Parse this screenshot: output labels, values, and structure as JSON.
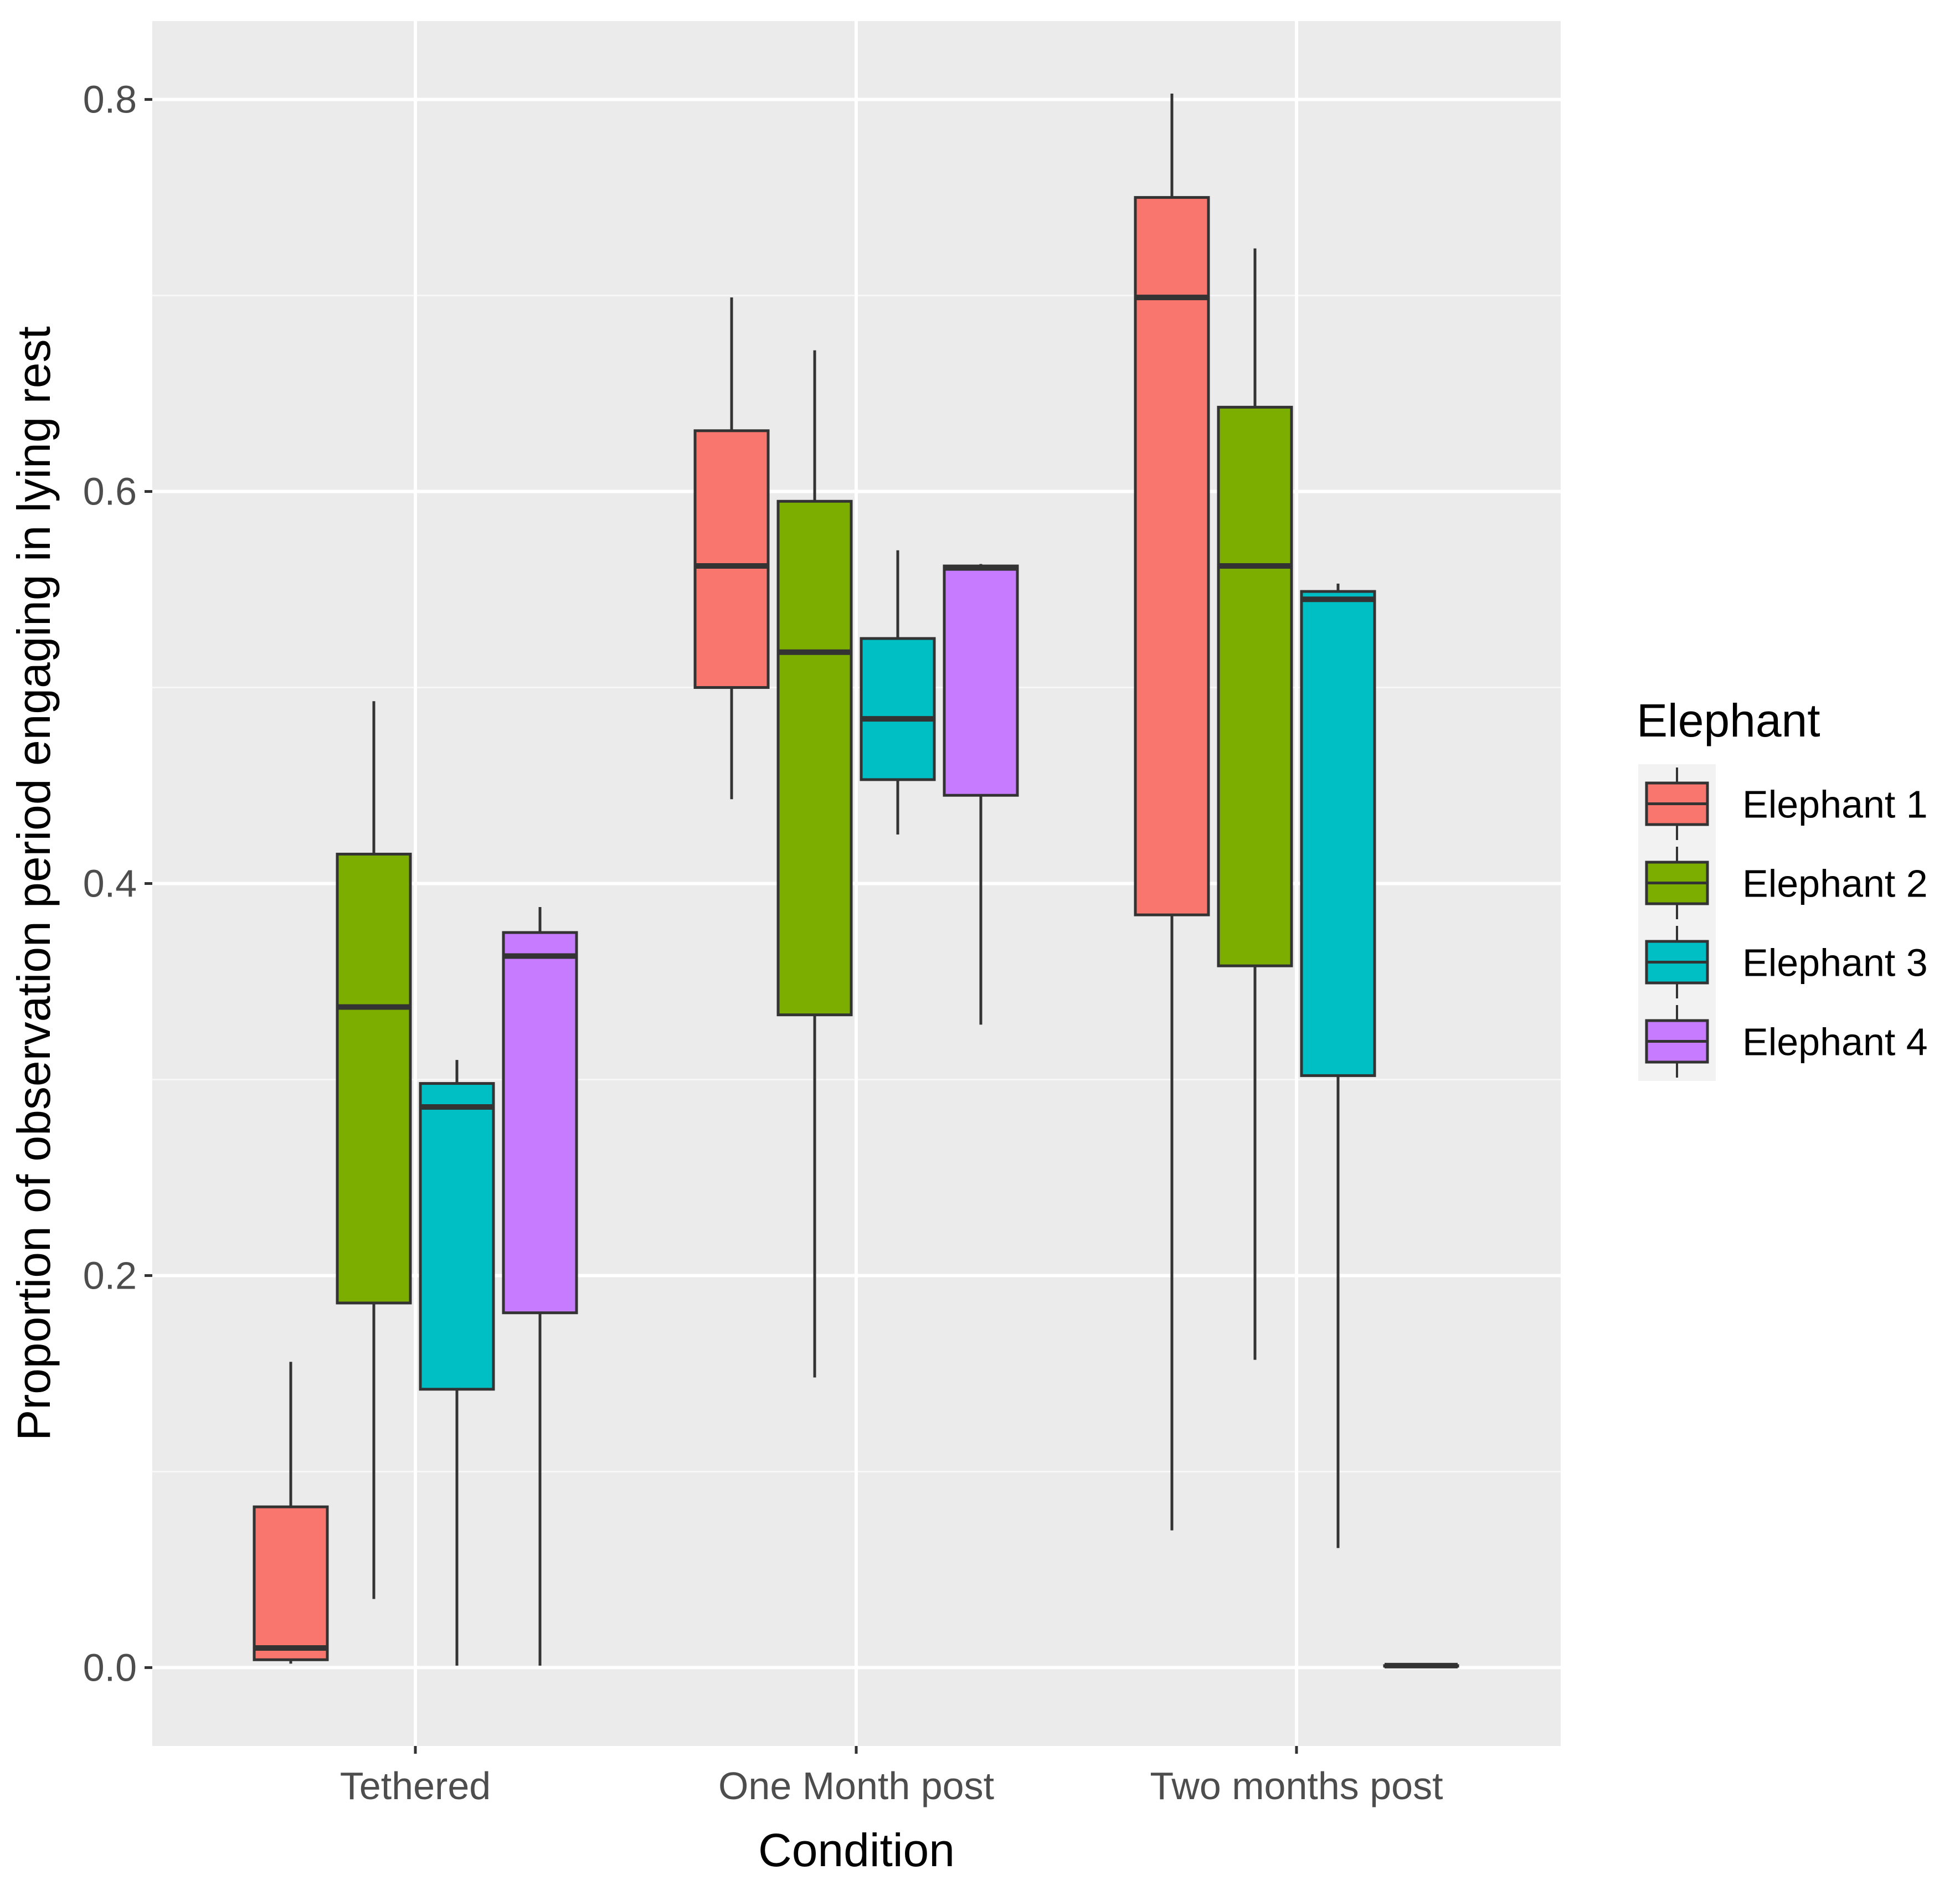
{
  "chart_data": {
    "type": "boxplot",
    "xlabel": "Condition",
    "ylabel": "Proportion of observation period engaging in lying rest",
    "ylim": [
      -0.04,
      0.84
    ],
    "yticks": [
      0.0,
      0.2,
      0.4,
      0.6,
      0.8
    ],
    "ytick_labels": [
      "0.0",
      "0.2",
      "0.4",
      "0.6",
      "0.8"
    ],
    "categories": [
      "Tethered",
      "One Month post",
      "Two months post"
    ],
    "legend": {
      "title": "Elephant",
      "position": "right",
      "entries": [
        "Elephant 1",
        "Elephant 2",
        "Elephant 3",
        "Elephant 4"
      ]
    },
    "colors": {
      "panel": "#EBEBEB",
      "grid_major": "#FFFFFF",
      "grid_minor": "#F7F7F7",
      "outline": "#333333",
      "series": [
        "#F8766D",
        "#7CAE00",
        "#00BFC4",
        "#C77CFF"
      ]
    },
    "series": [
      {
        "name": "Elephant 1",
        "boxes": [
          {
            "min": 0.002,
            "q1": 0.004,
            "median": 0.01,
            "q3": 0.082,
            "max": 0.156
          },
          {
            "min": 0.443,
            "q1": 0.5,
            "median": 0.562,
            "q3": 0.631,
            "max": 0.699
          },
          {
            "min": 0.07,
            "q1": 0.384,
            "median": 0.699,
            "q3": 0.75,
            "max": 0.803
          }
        ]
      },
      {
        "name": "Elephant 2",
        "boxes": [
          {
            "min": 0.035,
            "q1": 0.186,
            "median": 0.337,
            "q3": 0.415,
            "max": 0.493
          },
          {
            "min": 0.148,
            "q1": 0.333,
            "median": 0.518,
            "q3": 0.595,
            "max": 0.672
          },
          {
            "min": 0.157,
            "q1": 0.358,
            "median": 0.562,
            "q3": 0.643,
            "max": 0.724
          }
        ]
      },
      {
        "name": "Elephant 3",
        "boxes": [
          {
            "min": 0.001,
            "q1": 0.142,
            "median": 0.286,
            "q3": 0.298,
            "max": 0.31
          },
          {
            "min": 0.425,
            "q1": 0.453,
            "median": 0.484,
            "q3": 0.525,
            "max": 0.57
          },
          {
            "min": 0.061,
            "q1": 0.302,
            "median": 0.545,
            "q3": 0.549,
            "max": 0.553
          }
        ]
      },
      {
        "name": "Elephant 4",
        "boxes": [
          {
            "min": 0.001,
            "q1": 0.181,
            "median": 0.363,
            "q3": 0.375,
            "max": 0.388
          },
          {
            "min": 0.328,
            "q1": 0.445,
            "median": 0.561,
            "q3": 0.562,
            "max": 0.563
          },
          {
            "min": 0.001,
            "q1": 0.001,
            "median": 0.001,
            "q3": 0.001,
            "max": 0.001
          }
        ]
      }
    ]
  }
}
